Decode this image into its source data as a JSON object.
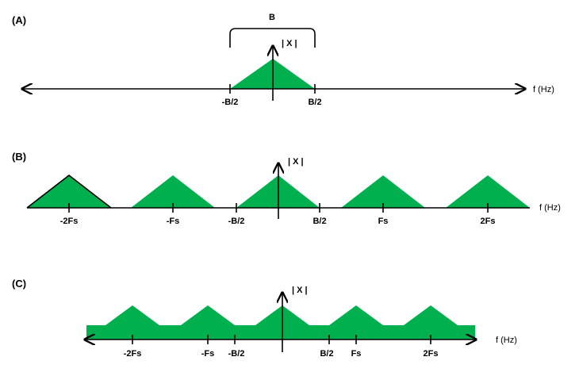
{
  "colors": {
    "spectrum": "#00b04f",
    "axis": "#000000",
    "background": "#ffffff"
  },
  "panel_a": {
    "label": "(A)",
    "bandwidth_label": "B",
    "magnitude_label": "| X |",
    "axis_unit": "f (Hz)",
    "ticks": [
      "-B/2",
      "B/2"
    ]
  },
  "panel_b": {
    "label": "(B)",
    "magnitude_label": "| X |",
    "axis_unit": "f (Hz)",
    "ticks": [
      "-2Fs",
      "-Fs",
      "-B/2",
      "B/2",
      "Fs",
      "2Fs"
    ]
  },
  "panel_c": {
    "label": "(C)",
    "magnitude_label": "| X |",
    "axis_unit": "f (Hz)",
    "ticks": [
      "-2Fs",
      "-Fs",
      "-B/2",
      "B/2",
      "Fs",
      "2Fs"
    ]
  }
}
